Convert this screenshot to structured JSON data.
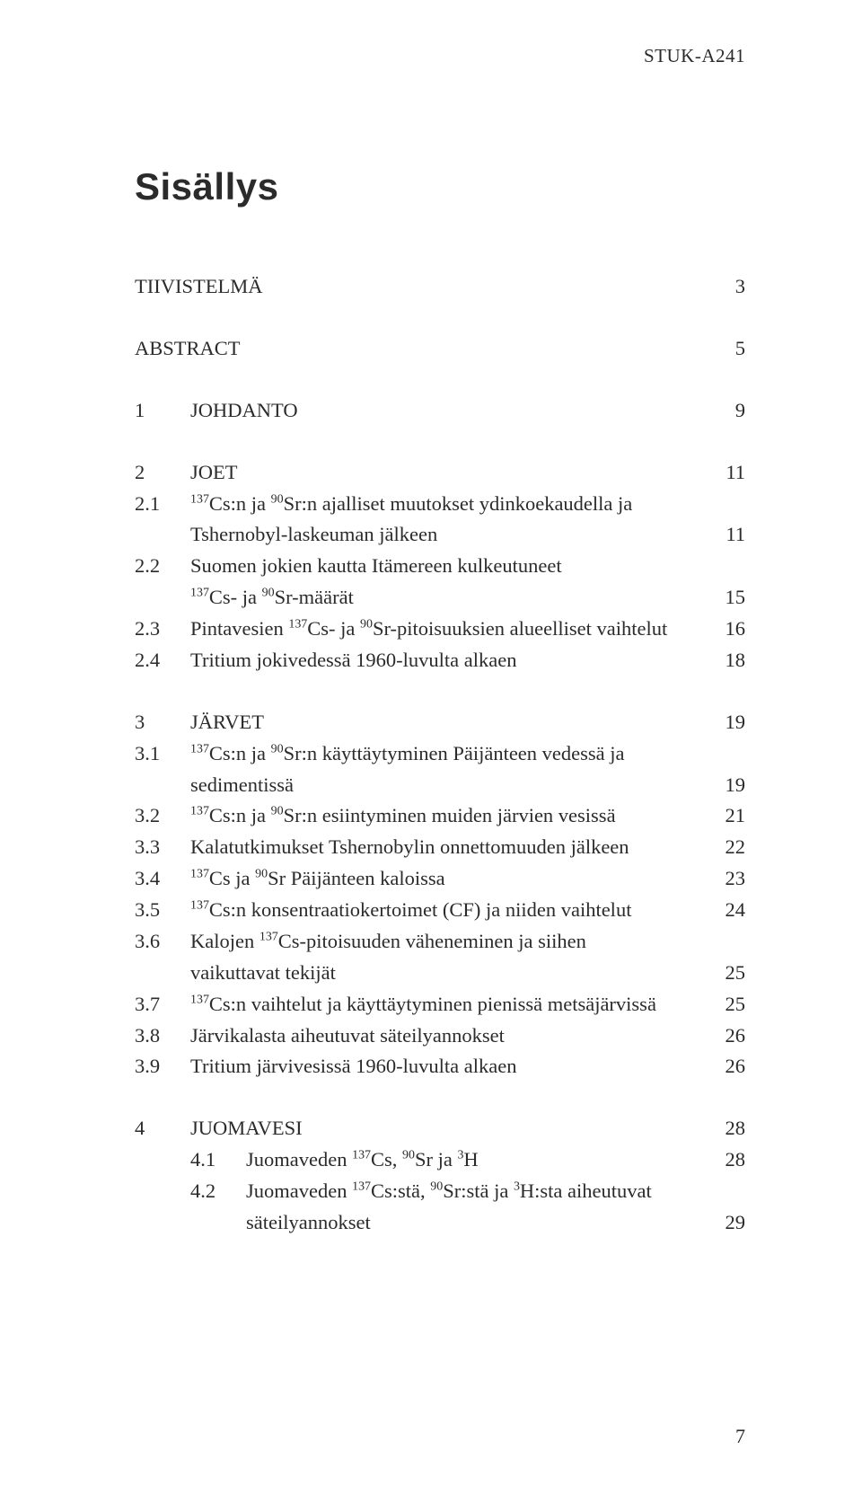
{
  "running_head": "STUK-A241",
  "title": "Sisällys",
  "footer_page": "7",
  "toc": {
    "front": [
      {
        "label": "TIIVISTELMÄ",
        "page": "3"
      },
      {
        "label": "ABSTRACT",
        "page": "5"
      }
    ],
    "chapters": [
      {
        "num": "1",
        "title": "JOHDANTO",
        "page": "9",
        "subs": []
      },
      {
        "num": "2",
        "title": "JOET",
        "page": "11",
        "subs": [
          {
            "num": "2.1",
            "lines": [
              "¹³⁷Cs:n ja ⁹⁰Sr:n ajalliset muutokset ydinkoekaudella ja",
              "Tshernobyl-laskeuman jälkeen"
            ],
            "page": "11"
          },
          {
            "num": "2.2",
            "lines": [
              "Suomen jokien kautta Itämereen kulkeutuneet",
              "¹³⁷Cs- ja ⁹⁰Sr-määrät"
            ],
            "page": "15"
          },
          {
            "num": "2.3",
            "lines": [
              "Pintavesien ¹³⁷Cs- ja ⁹⁰Sr-pitoisuuksien alueelliset vaihtelut"
            ],
            "page": "16"
          },
          {
            "num": "2.4",
            "lines": [
              "Tritium jokivedessä 1960-luvulta alkaen"
            ],
            "page": "18"
          }
        ]
      },
      {
        "num": "3",
        "title": "JÄRVET",
        "page": "19",
        "subs": [
          {
            "num": "3.1",
            "lines": [
              "¹³⁷Cs:n ja ⁹⁰Sr:n käyttäytyminen Päijänteen vedessä ja",
              "sedimentissä"
            ],
            "page": "19"
          },
          {
            "num": "3.2",
            "lines": [
              "¹³⁷Cs:n ja ⁹⁰Sr:n esiintyminen muiden järvien vesissä"
            ],
            "page": "21"
          },
          {
            "num": "3.3",
            "lines": [
              "Kalatutkimukset Tshernobylin onnettomuuden jälkeen"
            ],
            "page": "22"
          },
          {
            "num": "3.4",
            "lines": [
              "¹³⁷Cs ja ⁹⁰Sr Päijänteen kaloissa"
            ],
            "page": "23"
          },
          {
            "num": "3.5",
            "lines": [
              "¹³⁷Cs:n konsentraatiokertoimet (CF) ja niiden vaihtelut"
            ],
            "page": "24"
          },
          {
            "num": "3.6",
            "lines": [
              "Kalojen ¹³⁷Cs-pitoisuuden väheneminen ja siihen",
              "vaikuttavat tekijät"
            ],
            "page": "25"
          },
          {
            "num": "3.7",
            "lines": [
              "¹³⁷Cs:n vaihtelut ja käyttäytyminen pienissä metsäjärvissä"
            ],
            "page": "25"
          },
          {
            "num": "3.8",
            "lines": [
              "Järvikalasta aiheutuvat säteilyannokset"
            ],
            "page": "26"
          },
          {
            "num": "3.9",
            "lines": [
              "Tritium järvivesissä 1960-luvulta alkaen"
            ],
            "page": "26"
          }
        ]
      },
      {
        "num": "4",
        "title": "JUOMAVESI",
        "page": "28",
        "subs": [
          {
            "num": "4.1",
            "lines": [
              "Juomaveden ¹³⁷Cs, ⁹⁰Sr ja ³H"
            ],
            "page": "28"
          },
          {
            "num": "4.2",
            "lines": [
              "Juomaveden ¹³⁷Cs:stä, ⁹⁰Sr:stä ja ³H:sta aiheutuvat",
              "säteilyannokset"
            ],
            "page": "29"
          }
        ]
      }
    ]
  }
}
